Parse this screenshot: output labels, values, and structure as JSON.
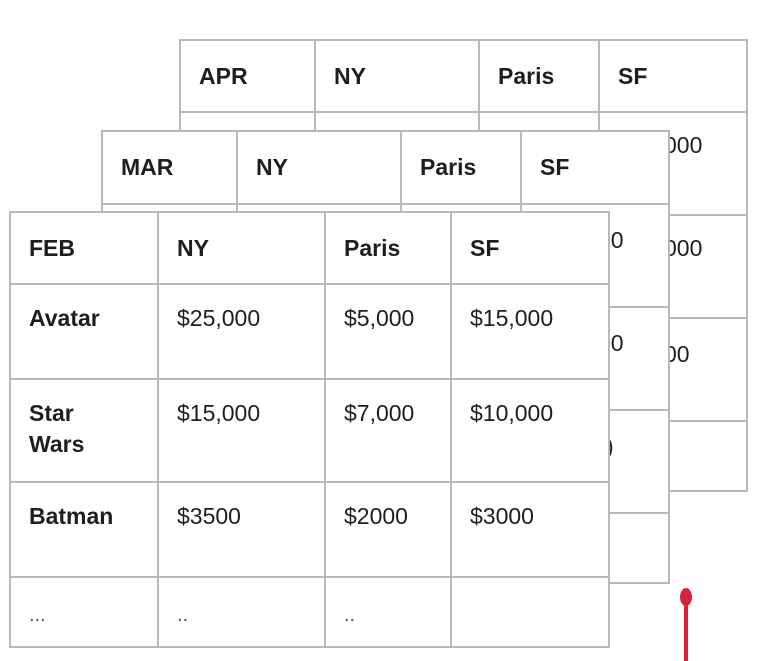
{
  "sheets": {
    "apr": {
      "month": "APR",
      "cities": [
        "NY",
        "Paris",
        "SF"
      ],
      "visible_fragments": [
        "000",
        "000",
        "00"
      ]
    },
    "mar": {
      "month": "MAR",
      "cities": [
        "NY",
        "Paris",
        "SF"
      ],
      "visible_fragments": [
        "00",
        "00",
        ")"
      ]
    },
    "feb": {
      "month": "FEB",
      "cities": [
        "NY",
        "Paris",
        "SF"
      ],
      "rows": [
        {
          "label": "Avatar",
          "values": [
            "$25,000",
            "$5,000",
            "$15,000"
          ]
        },
        {
          "label": "Star Wars",
          "values": [
            "$15,000",
            "$7,000",
            "$10,000"
          ]
        },
        {
          "label": "Batman",
          "values": [
            "$3500",
            "$2000",
            "$3000"
          ]
        },
        {
          "label": "...",
          "values": [
            "..",
            "..",
            ""
          ]
        }
      ]
    }
  },
  "colors": {
    "grid_line": "#b9b9b9",
    "text": "#1e1e1e",
    "marker": "#d9213f"
  }
}
